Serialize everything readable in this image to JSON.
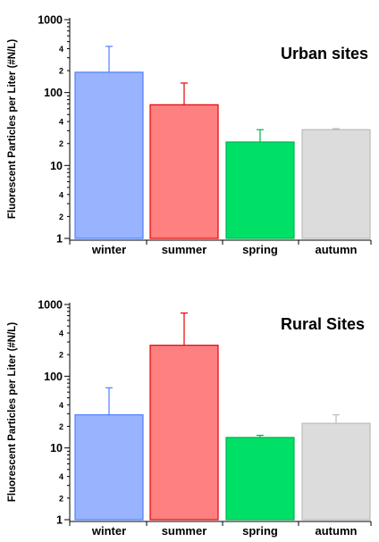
{
  "chart_data": [
    {
      "type": "bar",
      "title": "Urban sites",
      "ylabel": "Fluorescent Particles per Liter (#N/L)",
      "yscale": "log",
      "ylim": [
        1,
        1000
      ],
      "major_ticks": [
        "1",
        "10",
        "100",
        "1000"
      ],
      "minor_tick_labels": [
        "2",
        "4"
      ],
      "categories": [
        "winter",
        "summer",
        "spring",
        "autumn"
      ],
      "values": [
        190,
        68,
        21,
        31
      ],
      "error_upper": [
        430,
        135,
        31,
        32
      ],
      "colors": [
        "#99b3ff",
        "#ff8080",
        "#00e066",
        "#dcdcdc"
      ],
      "edge_colors": [
        "#4d80ff",
        "#e60000",
        "#00b34d",
        "#bbbbbb"
      ],
      "legend": "none",
      "grid": false
    },
    {
      "type": "bar",
      "title": "Rural Sites",
      "ylabel": "Fluorescent Particles per Liter (#N/L)",
      "yscale": "log",
      "ylim": [
        1,
        1000
      ],
      "major_ticks": [
        "1",
        "10",
        "100",
        "1000"
      ],
      "minor_tick_labels": [
        "2",
        "4"
      ],
      "categories": [
        "winter",
        "summer",
        "spring",
        "autumn"
      ],
      "values": [
        29,
        270,
        14,
        22
      ],
      "error_upper": [
        69,
        760,
        15,
        29
      ],
      "colors": [
        "#99b3ff",
        "#ff8080",
        "#00e066",
        "#dcdcdc"
      ],
      "edge_colors": [
        "#4d80ff",
        "#e60000",
        "#00b34d",
        "#bbbbbb"
      ],
      "legend": "none",
      "grid": false
    }
  ]
}
